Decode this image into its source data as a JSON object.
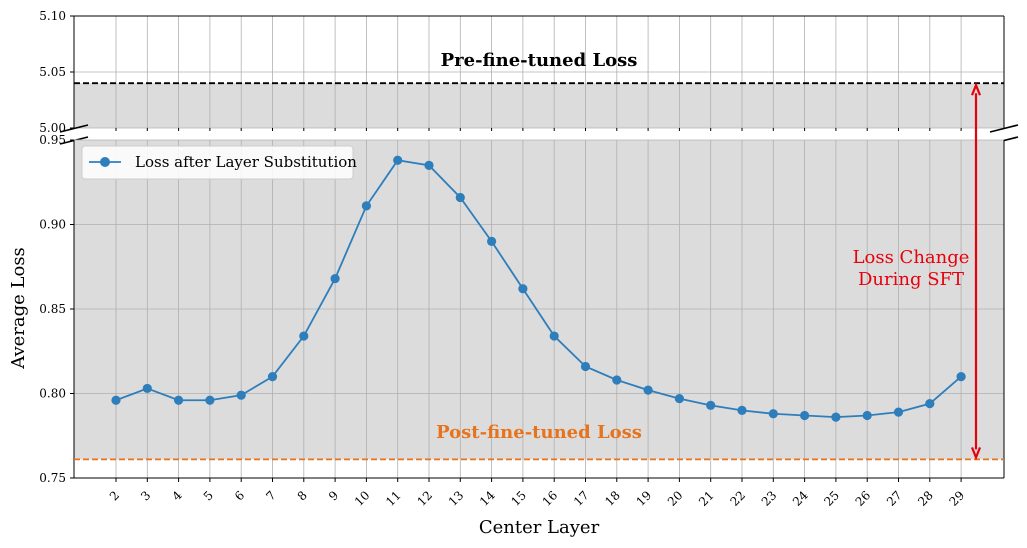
{
  "chart_data": {
    "type": "line",
    "xlabel": "Center Layer",
    "ylabel": "Average Loss",
    "categories": [
      2,
      3,
      4,
      5,
      6,
      7,
      8,
      9,
      10,
      11,
      12,
      13,
      14,
      15,
      16,
      17,
      18,
      19,
      20,
      21,
      22,
      23,
      24,
      25,
      26,
      27,
      28,
      29
    ],
    "series": [
      {
        "name": "Loss after Layer Substitution",
        "color": "#2e7ebc",
        "values": [
          0.796,
          0.803,
          0.796,
          0.796,
          0.799,
          0.81,
          0.834,
          0.868,
          0.911,
          0.938,
          0.935,
          0.916,
          0.89,
          0.862,
          0.834,
          0.816,
          0.808,
          0.802,
          0.797,
          0.793,
          0.79,
          0.788,
          0.787,
          0.786,
          0.787,
          0.789,
          0.794,
          0.81
        ]
      }
    ],
    "broken_axis": {
      "upper": {
        "ylim": [
          5.0,
          5.1
        ],
        "ticks": [
          "5.00",
          "5.05",
          "5.10"
        ]
      },
      "lower": {
        "ylim": [
          0.75,
          0.95
        ],
        "ticks": [
          "0.75",
          "0.80",
          "0.85",
          "0.90",
          "0.95"
        ]
      }
    },
    "reference_lines": [
      {
        "label": "Pre-fine-tuned Loss",
        "value": 5.04,
        "color": "#000000",
        "style": "dashed",
        "panel": "upper"
      },
      {
        "label": "Post-fine-tuned Loss",
        "value": 0.761,
        "color": "#e8731d",
        "style": "dashed",
        "panel": "lower"
      }
    ],
    "annotation": {
      "text_line1": "Loss Change",
      "text_line2": "During SFT",
      "color": "#e8000b"
    },
    "legend_position": "upper-left",
    "grid": true,
    "shaded_region_color": "#dcdcdc"
  }
}
